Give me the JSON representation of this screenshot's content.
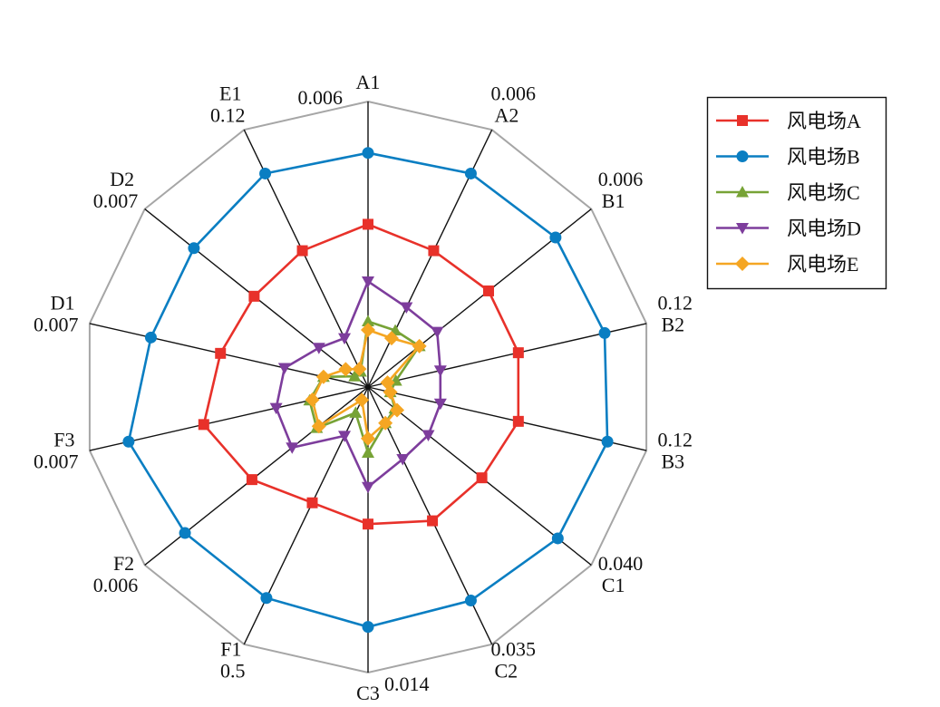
{
  "chart_data": {
    "type": "radar",
    "title": "",
    "categories": [
      "A1",
      "A2",
      "B1",
      "B2",
      "B3",
      "C1",
      "C2",
      "C3",
      "F1",
      "F2",
      "F3",
      "D1",
      "D2",
      "E1"
    ],
    "axis_max_labels": [
      "0.006",
      "0.006",
      "0.006",
      "0.12",
      "0.12",
      "0.040",
      "0.035",
      "0.014",
      "0.5",
      "0.006",
      "0.007",
      "0.007",
      "0.007",
      "0.12"
    ],
    "rings": 1,
    "legend_position": "top-right",
    "series": [
      {
        "name": "风电场A",
        "color": "#e8312a",
        "marker": "square",
        "values": [
          0.57,
          0.53,
          0.54,
          0.54,
          0.54,
          0.51,
          0.52,
          0.48,
          0.45,
          0.52,
          0.59,
          0.53,
          0.51,
          0.53
        ]
      },
      {
        "name": "风电场B",
        "color": "#0a7ec2",
        "marker": "circle",
        "values": [
          0.82,
          0.83,
          0.84,
          0.85,
          0.86,
          0.85,
          0.83,
          0.84,
          0.82,
          0.82,
          0.86,
          0.78,
          0.78,
          0.83
        ]
      },
      {
        "name": "风电场C",
        "color": "#77a336",
        "marker": "triangle-up",
        "values": [
          0.23,
          0.22,
          0.23,
          0.1,
          0.08,
          0.12,
          0.14,
          0.23,
          0.1,
          0.23,
          0.21,
          0.16,
          0.06,
          0.06
        ]
      },
      {
        "name": "风电场D",
        "color": "#7d3d9c",
        "marker": "triangle-down",
        "values": [
          0.37,
          0.31,
          0.31,
          0.26,
          0.26,
          0.27,
          0.28,
          0.35,
          0.19,
          0.34,
          0.33,
          0.3,
          0.22,
          0.19
        ]
      },
      {
        "name": "风电场E",
        "color": "#f5a623",
        "marker": "diamond",
        "values": [
          0.2,
          0.19,
          0.23,
          0.07,
          0.08,
          0.13,
          0.14,
          0.18,
          0.05,
          0.22,
          0.2,
          0.16,
          0.1,
          0.07
        ]
      }
    ]
  }
}
